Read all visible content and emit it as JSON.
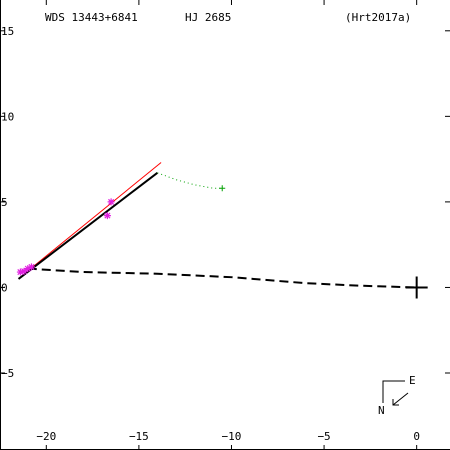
{
  "header": {
    "wds": "WDS 13443+6841",
    "discoverer": "HJ 2685",
    "orbit_ref": "(Hrt2017a)"
  },
  "compass": {
    "east": "E",
    "north": "N"
  },
  "colors": {
    "background": "#ffffff",
    "axes": "#000000",
    "measures": "#e020e0",
    "model_line": "#ff0000",
    "fit_line": "#000000",
    "dotted_track": "#00a000"
  },
  "chart_data": {
    "type": "scatter",
    "x_axis": {
      "range": [
        -22.5,
        1.8
      ],
      "ticks": [
        -20,
        -15,
        -10,
        -5,
        0
      ],
      "tick_labels": [
        "−20",
        "−15",
        "−10",
        "−5",
        "0"
      ]
    },
    "y_axis": {
      "range": [
        -9.5,
        16.8
      ],
      "ticks": [
        15,
        10,
        5,
        0,
        -5
      ],
      "tick_labels": [
        "15",
        "10",
        "5",
        "0",
        "−5"
      ]
    },
    "grid": false,
    "primary_star": {
      "x": 0,
      "y": 0
    },
    "measures": [
      {
        "x": -21.4,
        "y": 0.9
      },
      {
        "x": -21.2,
        "y": 0.95
      },
      {
        "x": -21.0,
        "y": 1.1
      },
      {
        "x": -20.8,
        "y": 1.2
      },
      {
        "x": -16.7,
        "y": 4.2
      },
      {
        "x": -16.5,
        "y": 5.0
      }
    ],
    "model_line": {
      "x": [
        -21.3,
        -13.8
      ],
      "y": [
        0.7,
        7.3
      ]
    },
    "fit_line": {
      "x": [
        -21.5,
        -14.0
      ],
      "y": [
        0.5,
        6.7
      ]
    },
    "dotted_track": {
      "x": [
        -14.0,
        -13.0,
        -12.0,
        -11.0,
        -10.5
      ],
      "y": [
        6.7,
        6.3,
        6.0,
        5.8,
        5.8
      ],
      "end_marker": {
        "x": -10.5,
        "y": 5.8
      }
    },
    "dashed_line": {
      "x": [
        -21.0,
        -18.0,
        -14.0,
        -10.0,
        -6.0,
        -3.0,
        0
      ],
      "y": [
        1.1,
        0.9,
        0.8,
        0.6,
        0.25,
        0.1,
        0
      ]
    }
  }
}
